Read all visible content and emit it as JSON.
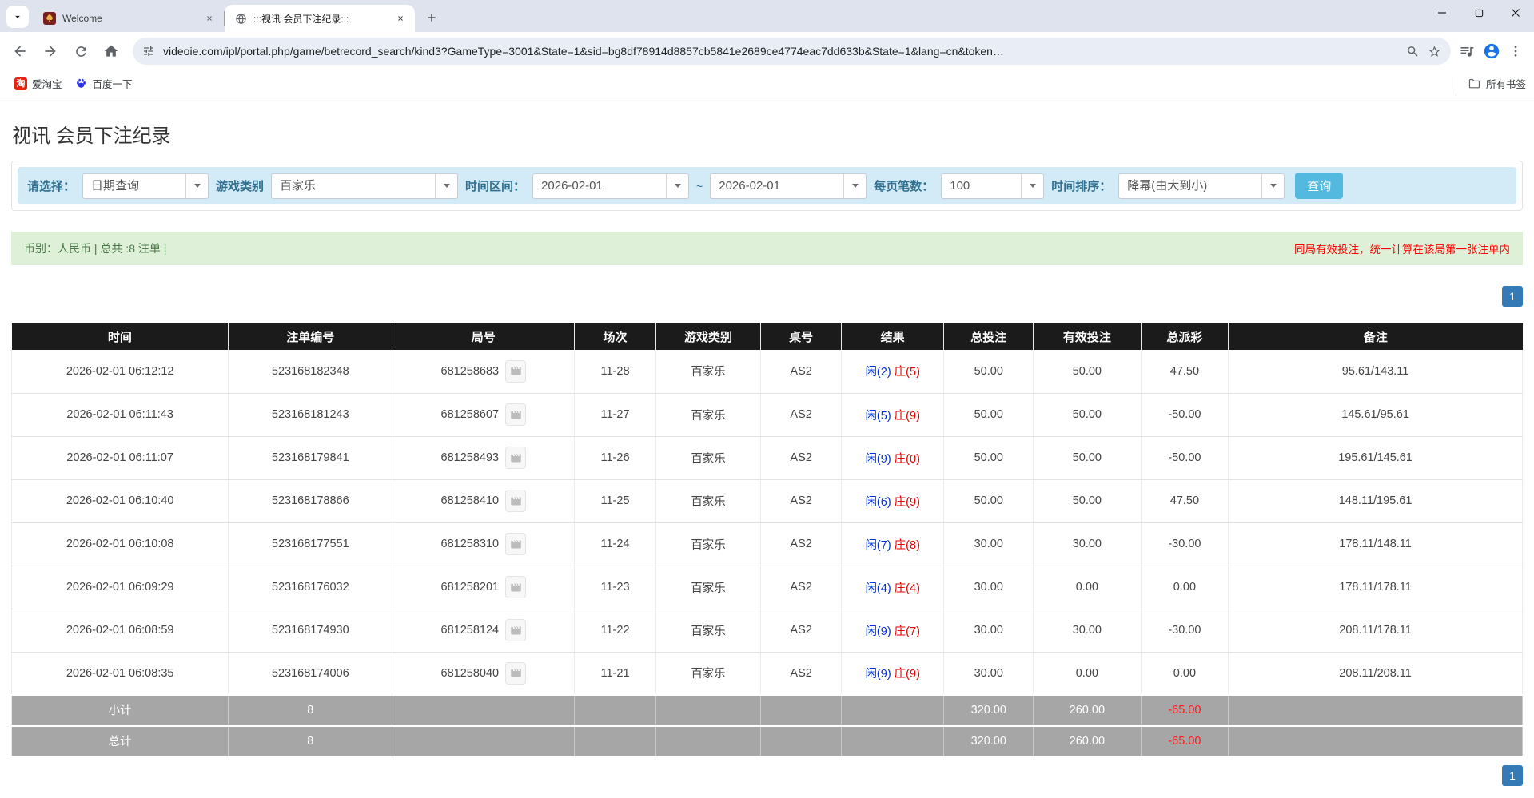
{
  "browser": {
    "tabs": [
      {
        "title": "Welcome",
        "favicon": "spade-logo",
        "active": false
      },
      {
        "title": ":::视讯 会员下注纪录:::",
        "favicon": "globe",
        "active": true
      }
    ],
    "url": "videoie.com/ipl/portal.php/game/betrecord_search/kind3?GameType=3001&State=1&sid=bg8df78914d8857cb5841e2689ce4774eac7dd633b&State=1&lang=cn&token…",
    "bookmarks": [
      {
        "label": "爱淘宝"
      },
      {
        "label": "百度一下"
      }
    ],
    "all_bookmarks_label": "所有书签"
  },
  "colors": {
    "filter_bg": "#d3eaf7",
    "btn_info": "#53b9de",
    "bar_green_bg": "#dff0d8",
    "bar_green_text": "#4c7a4c",
    "red_note": "#ff0000",
    "pager_blue": "#337ab7",
    "thead_bg": "#1b1b1b",
    "tfoot_bg": "#a6a6a6",
    "player_blue": "#0033d9",
    "banker_red": "#e60000",
    "bet_blue": "#1c74d9"
  },
  "page": {
    "title": "视讯 会员下注纪录",
    "filters": {
      "select_label": "请选择：",
      "select_value": "日期查询",
      "game_type_label": "游戏类别",
      "game_type_value": "百家乐",
      "date_range_label": "时间区间：",
      "date_from": "2026-02-01",
      "date_separator": "~",
      "date_to": "2026-02-01",
      "page_size_label": "每页笔数：",
      "page_size_value": "100",
      "sort_label": "时间排序：",
      "sort_value": "降幂(由大到小)",
      "query_button": "查询"
    },
    "summary": {
      "left": "币别：人民币 | 总共 :8 注单 |",
      "right": "同局有效投注，统一计算在该局第一张注单内"
    },
    "pagination": {
      "page": "1"
    },
    "table": {
      "headers": [
        "时间",
        "注单编号",
        "局号",
        "场次",
        "游戏类别",
        "桌号",
        "结果",
        "总投注",
        "有效投注",
        "总派彩",
        "备注"
      ],
      "rows": [
        {
          "time": "2026-02-01 06:12:12",
          "bet_id": "523168182348",
          "round_id": "681258683",
          "session": "11-28",
          "game": "百家乐",
          "table_no": "AS2",
          "result_player": "闲(2)",
          "result_banker": "庄(5)",
          "total_bet": "50.00",
          "valid_bet": "50.00",
          "payout": "47.50",
          "note": "95.61/143.11"
        },
        {
          "time": "2026-02-01 06:11:43",
          "bet_id": "523168181243",
          "round_id": "681258607",
          "session": "11-27",
          "game": "百家乐",
          "table_no": "AS2",
          "result_player": "闲(5)",
          "result_banker": "庄(9)",
          "total_bet": "50.00",
          "valid_bet": "50.00",
          "payout": "-50.00",
          "note": "145.61/95.61"
        },
        {
          "time": "2026-02-01 06:11:07",
          "bet_id": "523168179841",
          "round_id": "681258493",
          "session": "11-26",
          "game": "百家乐",
          "table_no": "AS2",
          "result_player": "闲(9)",
          "result_banker": "庄(0)",
          "total_bet": "50.00",
          "valid_bet": "50.00",
          "payout": "-50.00",
          "note": "195.61/145.61"
        },
        {
          "time": "2026-02-01 06:10:40",
          "bet_id": "523168178866",
          "round_id": "681258410",
          "session": "11-25",
          "game": "百家乐",
          "table_no": "AS2",
          "result_player": "闲(6)",
          "result_banker": "庄(9)",
          "total_bet": "50.00",
          "valid_bet": "50.00",
          "payout": "47.50",
          "note": "148.11/195.61"
        },
        {
          "time": "2026-02-01 06:10:08",
          "bet_id": "523168177551",
          "round_id": "681258310",
          "session": "11-24",
          "game": "百家乐",
          "table_no": "AS2",
          "result_player": "闲(7)",
          "result_banker": "庄(8)",
          "total_bet": "30.00",
          "valid_bet": "30.00",
          "payout": "-30.00",
          "note": "178.11/148.11"
        },
        {
          "time": "2026-02-01 06:09:29",
          "bet_id": "523168176032",
          "round_id": "681258201",
          "session": "11-23",
          "game": "百家乐",
          "table_no": "AS2",
          "result_player": "闲(4)",
          "result_banker": "庄(4)",
          "total_bet": "30.00",
          "valid_bet": "0.00",
          "payout": "0.00",
          "note": "178.11/178.11"
        },
        {
          "time": "2026-02-01 06:08:59",
          "bet_id": "523168174930",
          "round_id": "681258124",
          "session": "11-22",
          "game": "百家乐",
          "table_no": "AS2",
          "result_player": "闲(9)",
          "result_banker": "庄(7)",
          "total_bet": "30.00",
          "valid_bet": "30.00",
          "payout": "-30.00",
          "note": "208.11/178.11"
        },
        {
          "time": "2026-02-01 06:08:35",
          "bet_id": "523168174006",
          "round_id": "681258040",
          "session": "11-21",
          "game": "百家乐",
          "table_no": "AS2",
          "result_player": "闲(9)",
          "result_banker": "庄(9)",
          "total_bet": "30.00",
          "valid_bet": "0.00",
          "payout": "0.00",
          "note": "208.11/208.11"
        }
      ],
      "subtotal": {
        "label": "小计",
        "count": "8",
        "total_bet": "320.00",
        "valid_bet": "260.00",
        "payout": "-65.00"
      },
      "total": {
        "label": "总计",
        "count": "8",
        "total_bet": "320.00",
        "valid_bet": "260.00",
        "payout": "-65.00"
      }
    }
  }
}
